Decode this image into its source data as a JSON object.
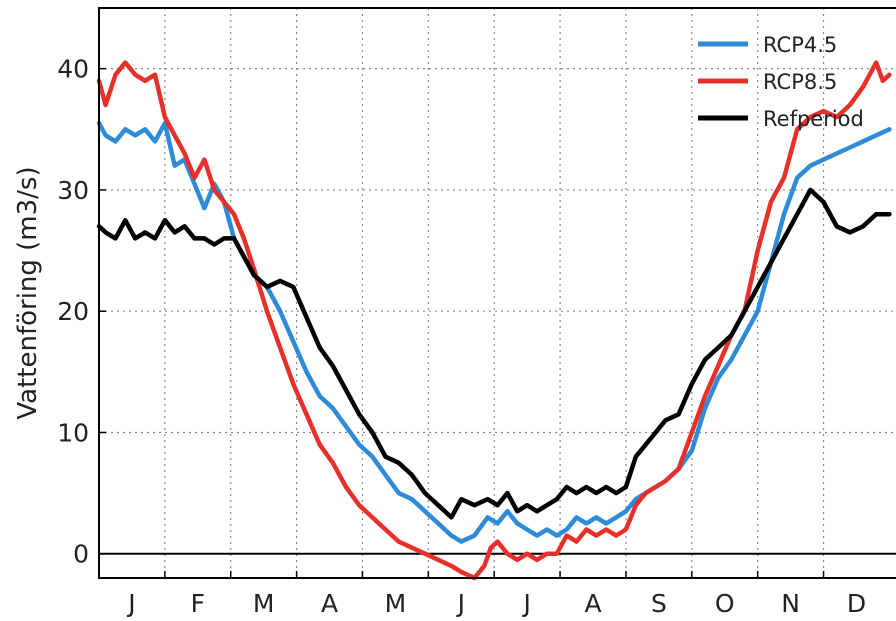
{
  "chart_data": {
    "type": "line",
    "title": "",
    "xlabel": "",
    "ylabel": "Vattenföring (m3/s)",
    "xlim": [
      0,
      12.1
    ],
    "ylim": [
      -2,
      45
    ],
    "x_ticks": [
      "J",
      "F",
      "M",
      "A",
      "M",
      "J",
      "J",
      "A",
      "S",
      "O",
      "N",
      "D"
    ],
    "y_ticks": [
      0,
      10,
      20,
      30,
      40
    ],
    "grid": true,
    "grid_style": "dotted",
    "legend_position": "top-right",
    "zero_line": true,
    "series": [
      {
        "name": "RCP4.5",
        "color": "#2e8bd8",
        "x": [
          0,
          0.1,
          0.25,
          0.4,
          0.55,
          0.7,
          0.85,
          1.0,
          1.15,
          1.3,
          1.45,
          1.6,
          1.75,
          1.9,
          2.05,
          2.2,
          2.35,
          2.55,
          2.75,
          2.95,
          3.15,
          3.35,
          3.55,
          3.75,
          3.95,
          4.15,
          4.35,
          4.55,
          4.75,
          4.95,
          5.15,
          5.35,
          5.5,
          5.7,
          5.9,
          6.05,
          6.2,
          6.35,
          6.5,
          6.65,
          6.8,
          6.95,
          7.1,
          7.25,
          7.4,
          7.55,
          7.7,
          7.85,
          8.0,
          8.15,
          8.3,
          8.45,
          8.6,
          8.8,
          9.0,
          9.2,
          9.4,
          9.6,
          9.8,
          10.0,
          10.2,
          10.4,
          10.6,
          10.8,
          11.0,
          11.2,
          11.4,
          11.6,
          11.8,
          12.0
        ],
        "values": [
          35.5,
          34.5,
          34,
          35,
          34.5,
          35,
          34,
          35.5,
          32,
          32.5,
          30.5,
          28.5,
          30.5,
          29,
          26,
          24.5,
          23,
          22,
          20,
          17.5,
          15,
          13,
          12,
          10.5,
          9,
          8,
          6.5,
          5,
          4.5,
          3.5,
          2.5,
          1.5,
          1,
          1.5,
          3,
          2.5,
          3.5,
          2.5,
          2,
          1.5,
          2,
          1.5,
          2,
          3,
          2.5,
          3,
          2.5,
          3,
          3.5,
          4.5,
          5,
          5.5,
          6,
          7,
          8.5,
          12,
          14.5,
          16,
          18,
          20,
          24,
          28,
          31,
          32,
          32.5,
          33,
          33.5,
          34,
          34.5,
          35
        ]
      },
      {
        "name": "RCP8.5",
        "color": "#e8302a",
        "x": [
          0,
          0.1,
          0.25,
          0.4,
          0.55,
          0.7,
          0.85,
          1.0,
          1.15,
          1.3,
          1.45,
          1.6,
          1.75,
          1.9,
          2.05,
          2.2,
          2.35,
          2.55,
          2.75,
          2.95,
          3.15,
          3.35,
          3.55,
          3.75,
          3.95,
          4.15,
          4.35,
          4.55,
          4.75,
          4.95,
          5.15,
          5.35,
          5.5,
          5.7,
          5.85,
          5.95,
          6.05,
          6.2,
          6.35,
          6.5,
          6.65,
          6.8,
          6.95,
          7.1,
          7.25,
          7.4,
          7.55,
          7.7,
          7.85,
          8.0,
          8.15,
          8.3,
          8.45,
          8.6,
          8.8,
          9.0,
          9.2,
          9.4,
          9.6,
          9.8,
          10.0,
          10.2,
          10.4,
          10.6,
          10.8,
          11.0,
          11.2,
          11.4,
          11.6,
          11.8,
          11.9,
          12.0
        ],
        "values": [
          39,
          37,
          39.5,
          40.5,
          39.5,
          39,
          39.5,
          36,
          34.5,
          33,
          31,
          32.5,
          30,
          29,
          28,
          26,
          23.5,
          20,
          17,
          14,
          11.5,
          9,
          7.5,
          5.5,
          4,
          3,
          2,
          1,
          0.5,
          0,
          -0.5,
          -1,
          -1.5,
          -2,
          -1,
          0.5,
          1,
          0,
          -0.5,
          0,
          -0.5,
          0,
          0,
          1.5,
          1,
          2,
          1.5,
          2,
          1.5,
          2,
          4,
          5,
          5.5,
          6,
          7,
          10,
          13,
          15.5,
          18,
          20,
          25,
          29,
          31,
          35,
          36,
          36.5,
          36,
          37,
          38.5,
          40.5,
          39,
          39.5
        ]
      },
      {
        "name": "Refperiod",
        "color": "#000000",
        "x": [
          0,
          0.1,
          0.25,
          0.4,
          0.55,
          0.7,
          0.85,
          1.0,
          1.15,
          1.3,
          1.45,
          1.6,
          1.75,
          1.9,
          2.05,
          2.2,
          2.35,
          2.55,
          2.75,
          2.95,
          3.15,
          3.35,
          3.55,
          3.75,
          3.95,
          4.15,
          4.35,
          4.55,
          4.75,
          4.95,
          5.15,
          5.35,
          5.5,
          5.7,
          5.9,
          6.05,
          6.2,
          6.35,
          6.5,
          6.65,
          6.8,
          6.95,
          7.1,
          7.25,
          7.4,
          7.55,
          7.7,
          7.85,
          8.0,
          8.15,
          8.3,
          8.45,
          8.6,
          8.8,
          9.0,
          9.2,
          9.4,
          9.6,
          9.8,
          10.0,
          10.2,
          10.4,
          10.6,
          10.8,
          11.0,
          11.2,
          11.4,
          11.6,
          11.8,
          12.0
        ],
        "values": [
          27,
          26.5,
          26,
          27.5,
          26,
          26.5,
          26,
          27.5,
          26.5,
          27,
          26,
          26,
          25.5,
          26,
          26,
          24.5,
          23,
          22,
          22.5,
          22,
          19.5,
          17,
          15.5,
          13.5,
          11.5,
          10,
          8,
          7.5,
          6.5,
          5,
          4,
          3,
          4.5,
          4,
          4.5,
          4,
          5,
          3.5,
          4,
          3.5,
          4,
          4.5,
          5.5,
          5,
          5.5,
          5,
          5.5,
          5,
          5.5,
          8,
          9,
          10,
          11,
          11.5,
          14,
          16,
          17,
          18,
          20,
          22,
          24,
          26,
          28,
          30,
          29,
          27,
          26.5,
          27,
          28,
          28
        ]
      }
    ]
  }
}
